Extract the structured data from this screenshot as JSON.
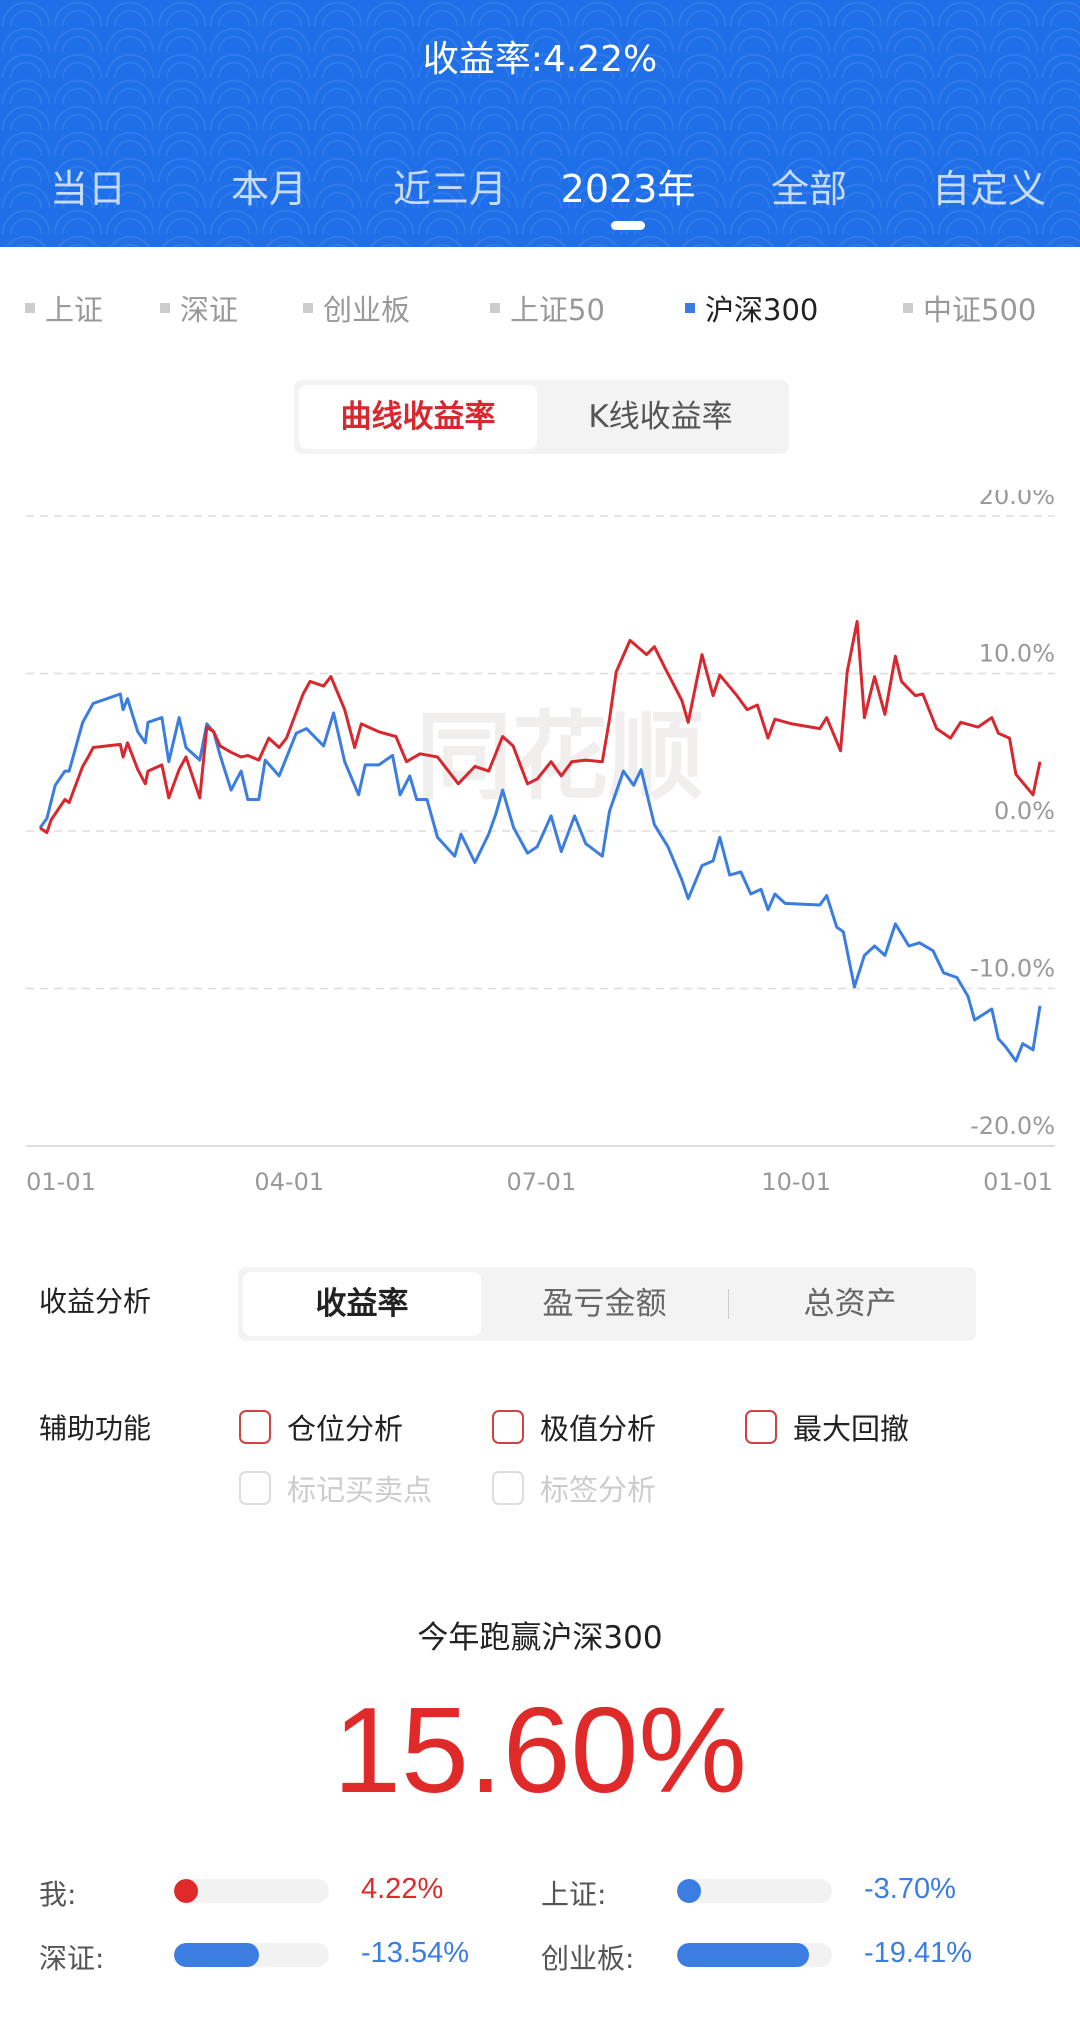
{
  "header": {
    "title": "收益率:4.22%",
    "tabs": [
      "当日",
      "本月",
      "近三月",
      "2023年",
      "全部",
      "自定义"
    ],
    "active_tab": 3
  },
  "legend": {
    "items": [
      "上证",
      "深证",
      "创业板",
      "上证50",
      "沪深300",
      "中证500"
    ],
    "active": 4
  },
  "chart_toggle": {
    "options": [
      "曲线收益率",
      "K线收益率"
    ],
    "active": 0
  },
  "watermark": "同花顺",
  "colors": {
    "mine": "#d8282f",
    "index": "#3b7de0",
    "header": "#1f6fe8"
  },
  "chart_data": {
    "type": "line",
    "x_unit": "day of year 2023",
    "ylim": [
      -20,
      20
    ],
    "yticks": [
      "20.0%",
      "10.0%",
      "0.0%",
      "-10.0%",
      "-20.0%"
    ],
    "ytick_values": [
      20,
      10,
      0,
      -10,
      -20
    ],
    "xticks": [
      "01-01",
      "04-01",
      "07-01",
      "10-01",
      "01-01"
    ],
    "xtick_values": [
      0,
      90,
      181,
      273,
      365
    ],
    "series": [
      {
        "name": "我",
        "color": "#d8282f",
        "points": [
          [
            0,
            0.2
          ],
          [
            2.5,
            -0.1
          ],
          [
            4,
            0.7
          ],
          [
            9,
            2.0
          ],
          [
            10.5,
            1.8
          ],
          [
            15.4,
            4.1
          ],
          [
            17.4,
            4.7
          ],
          [
            19.2,
            5.3
          ],
          [
            29,
            5.5
          ],
          [
            30,
            4.7
          ],
          [
            31.6,
            5.6
          ],
          [
            35.3,
            3.9
          ],
          [
            38,
            3.0
          ],
          [
            39,
            3.8
          ],
          [
            44,
            4.2
          ],
          [
            46.5,
            2.1
          ],
          [
            50.2,
            3.9
          ],
          [
            52.7,
            4.7
          ],
          [
            57.7,
            2.1
          ],
          [
            60.2,
            6.6
          ],
          [
            62.7,
            6.3
          ],
          [
            65,
            5.4
          ],
          [
            69,
            5.0
          ],
          [
            72.6,
            4.7
          ],
          [
            75,
            4.8
          ],
          [
            79,
            4.5
          ],
          [
            82.6,
            5.9
          ],
          [
            86.3,
            5.3
          ],
          [
            89,
            5.9
          ],
          [
            95,
            8.7
          ],
          [
            97.5,
            9.5
          ],
          [
            102.4,
            9.2
          ],
          [
            105,
            9.8
          ],
          [
            110,
            7.7
          ],
          [
            113.6,
            5.3
          ],
          [
            116,
            6.8
          ],
          [
            122.3,
            6.3
          ],
          [
            128.5,
            6.0
          ],
          [
            132.3,
            4.4
          ],
          [
            137.2,
            4.9
          ],
          [
            143.5,
            4.7
          ],
          [
            151,
            3.0
          ],
          [
            157,
            4.1
          ],
          [
            162,
            3.8
          ],
          [
            167,
            6.0
          ],
          [
            170.8,
            5.4
          ],
          [
            176,
            3.0
          ],
          [
            179.5,
            3.3
          ],
          [
            184.5,
            4.4
          ],
          [
            188.2,
            3.5
          ],
          [
            192,
            4.4
          ],
          [
            197,
            4.5
          ],
          [
            203,
            4.4
          ],
          [
            205.6,
            7.1
          ],
          [
            208,
            10.1
          ],
          [
            213,
            12.1
          ],
          [
            219,
            11.2
          ],
          [
            221.8,
            11.7
          ],
          [
            225.5,
            10.4
          ],
          [
            231.7,
            8.3
          ],
          [
            234,
            6.9
          ],
          [
            239,
            11.2
          ],
          [
            243,
            8.6
          ],
          [
            245.4,
            9.9
          ],
          [
            251.6,
            8.6
          ],
          [
            255.3,
            7.7
          ],
          [
            259,
            8.0
          ],
          [
            262.8,
            5.9
          ],
          [
            265.3,
            7.1
          ],
          [
            271.5,
            6.8
          ],
          [
            281.5,
            6.5
          ],
          [
            284,
            7.2
          ],
          [
            289,
            5.1
          ],
          [
            291.4,
            10.1
          ],
          [
            295,
            13.3
          ],
          [
            297.6,
            7.2
          ],
          [
            301.3,
            9.8
          ],
          [
            305,
            7.4
          ],
          [
            308.8,
            11.1
          ],
          [
            311,
            9.5
          ],
          [
            316,
            8.6
          ],
          [
            318.7,
            8.7
          ],
          [
            323.7,
            6.5
          ],
          [
            328.7,
            5.9
          ],
          [
            332.4,
            6.9
          ],
          [
            338.6,
            6.6
          ],
          [
            343.6,
            7.2
          ],
          [
            346,
            6.2
          ],
          [
            350,
            5.9
          ],
          [
            352.3,
            3.6
          ],
          [
            358.5,
            2.3
          ],
          [
            361,
            4.4
          ]
        ]
      },
      {
        "name": "沪深300",
        "color": "#3b7de0",
        "points": [
          [
            0,
            0.2
          ],
          [
            2.5,
            0.8
          ],
          [
            5.5,
            2.9
          ],
          [
            9,
            3.8
          ],
          [
            10.5,
            3.8
          ],
          [
            15.4,
            6.9
          ],
          [
            19.2,
            8.1
          ],
          [
            29,
            8.7
          ],
          [
            30,
            7.7
          ],
          [
            31.6,
            8.4
          ],
          [
            35.3,
            6.3
          ],
          [
            38,
            5.6
          ],
          [
            39,
            6.9
          ],
          [
            44,
            7.2
          ],
          [
            46.5,
            4.4
          ],
          [
            50.2,
            7.2
          ],
          [
            52.7,
            5.3
          ],
          [
            57.7,
            4.5
          ],
          [
            60.2,
            6.8
          ],
          [
            62.7,
            6.3
          ],
          [
            65,
            4.8
          ],
          [
            69,
            2.6
          ],
          [
            72.6,
            3.8
          ],
          [
            75,
            2.0
          ],
          [
            79,
            2.0
          ],
          [
            81.3,
            4.5
          ],
          [
            86.3,
            3.5
          ],
          [
            92.5,
            6.2
          ],
          [
            96.2,
            6.5
          ],
          [
            102.4,
            5.4
          ],
          [
            106,
            7.5
          ],
          [
            110,
            4.4
          ],
          [
            115,
            2.3
          ],
          [
            117.4,
            4.2
          ],
          [
            122.3,
            4.2
          ],
          [
            127.3,
            4.8
          ],
          [
            130,
            2.3
          ],
          [
            133.5,
            3.5
          ],
          [
            136,
            2.0
          ],
          [
            139.7,
            2.0
          ],
          [
            143.5,
            -0.4
          ],
          [
            149.7,
            -1.6
          ],
          [
            152,
            -0.2
          ],
          [
            157,
            -2.0
          ],
          [
            162,
            -0.2
          ],
          [
            164.6,
            1.1
          ],
          [
            167,
            2.6
          ],
          [
            171,
            0.2
          ],
          [
            176,
            -1.4
          ],
          [
            179.5,
            -1.0
          ],
          [
            184.5,
            0.96
          ],
          [
            188.2,
            -1.3
          ],
          [
            193,
            0.96
          ],
          [
            197,
            -0.8
          ],
          [
            203,
            -1.6
          ],
          [
            205.6,
            1.25
          ],
          [
            210.6,
            3.8
          ],
          [
            214.3,
            2.9
          ],
          [
            217,
            3.9
          ],
          [
            221.8,
            0.4
          ],
          [
            226.7,
            -1.0
          ],
          [
            231.7,
            -3.1
          ],
          [
            234,
            -4.3
          ],
          [
            239,
            -2.2
          ],
          [
            243,
            -1.9
          ],
          [
            245.4,
            -0.4
          ],
          [
            249,
            -2.8
          ],
          [
            253,
            -2.6
          ],
          [
            256.6,
            -4.0
          ],
          [
            260.3,
            -3.7
          ],
          [
            262.8,
            -5.0
          ],
          [
            265.3,
            -4.0
          ],
          [
            269,
            -4.6
          ],
          [
            281.5,
            -4.7
          ],
          [
            284,
            -4.1
          ],
          [
            287.6,
            -6.1
          ],
          [
            290,
            -6.4
          ],
          [
            294,
            -9.9
          ],
          [
            297.6,
            -7.9
          ],
          [
            301.3,
            -7.3
          ],
          [
            305,
            -7.9
          ],
          [
            308.8,
            -5.9
          ],
          [
            313.7,
            -7.3
          ],
          [
            317.5,
            -7.1
          ],
          [
            322.4,
            -7.6
          ],
          [
            326.2,
            -9.0
          ],
          [
            331,
            -9.3
          ],
          [
            335,
            -10.5
          ],
          [
            337.4,
            -12.0
          ],
          [
            343.6,
            -11.3
          ],
          [
            346,
            -13.2
          ],
          [
            348.6,
            -13.7
          ],
          [
            352.3,
            -14.6
          ],
          [
            354.8,
            -13.5
          ],
          [
            358.5,
            -13.9
          ],
          [
            361,
            -11.1
          ]
        ]
      }
    ]
  },
  "analysis": {
    "label": "收益分析",
    "options": [
      "收益率",
      "盈亏金额",
      "总资产"
    ],
    "active": 0
  },
  "aux": {
    "label": "辅助功能",
    "options": [
      {
        "label": "仓位分析",
        "enabled": true
      },
      {
        "label": "极值分析",
        "enabled": true
      },
      {
        "label": "最大回撤",
        "enabled": true
      },
      {
        "label": "标记买卖点",
        "enabled": false
      },
      {
        "label": "标签分析",
        "enabled": false
      }
    ]
  },
  "beat": {
    "caption": "今年跑赢沪深300",
    "value": "15.60%"
  },
  "compare": [
    {
      "label": "我:",
      "value": "4.22%",
      "fill": 0.05,
      "color": "#e02a2a"
    },
    {
      "label": "上证:",
      "value": "-3.70%",
      "fill": 0.05,
      "color": "#3b7de0"
    },
    {
      "label": "深证:",
      "value": "-13.54%",
      "fill": 0.55,
      "color": "#3b7de0"
    },
    {
      "label": "创业板:",
      "value": "-19.41%",
      "fill": 0.85,
      "color": "#3b7de0"
    }
  ]
}
